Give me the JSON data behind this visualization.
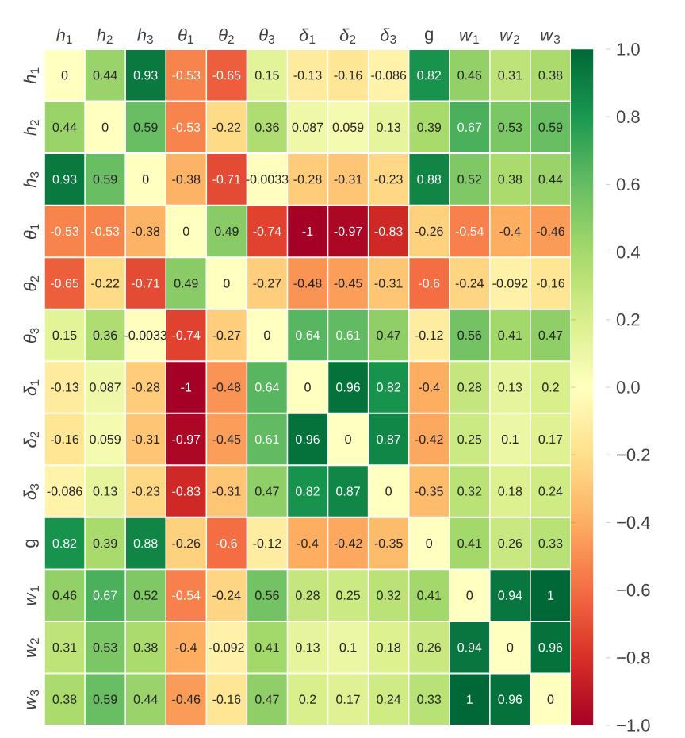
{
  "chart_data": {
    "type": "heatmap",
    "categories": [
      "*h*$_{1}$",
      "*h*$_{2}$",
      "*h*$_{3}$",
      "*θ*$_{1}$",
      "*θ*$_{2}$",
      "*θ*$_{3}$",
      "*δ*$_{1}$",
      "*δ*$_{2}$",
      "*δ*$_{3}$",
      "g",
      "*w*$_{1}$",
      "*w*$_{2}$",
      "*w*$_{3}$"
    ],
    "y_categories": [
      "*h*$_{1}$",
      "*h*$_{2}$",
      "*h*$_{3}$",
      "*θ*$_{1}$",
      "*θ*$_{2}$",
      "*θ*$_{3}$",
      "*δ*$_{1}$",
      "*δ*$_{2}$",
      "*δ*$_{3}$",
      "g",
      "*w*$_{1}$",
      "*w*$_{2}$",
      "*w*$_{3}$"
    ],
    "cells": [
      [
        0,
        0.44,
        0.93,
        -0.53,
        -0.65,
        0.15,
        -0.13,
        -0.16,
        -0.086,
        0.82,
        0.46,
        0.31,
        0.38
      ],
      [
        0.44,
        0,
        0.59,
        -0.53,
        -0.22,
        0.36,
        0.087,
        0.059,
        0.13,
        0.39,
        0.67,
        0.53,
        0.59
      ],
      [
        0.93,
        0.59,
        0,
        -0.38,
        -0.71,
        -0.0033,
        -0.28,
        -0.31,
        -0.23,
        0.88,
        0.52,
        0.38,
        0.44
      ],
      [
        -0.53,
        -0.53,
        -0.38,
        0,
        0.49,
        -0.74,
        -1,
        -0.97,
        -0.83,
        -0.26,
        -0.54,
        -0.4,
        -0.46
      ],
      [
        -0.65,
        -0.22,
        -0.71,
        0.49,
        0,
        -0.27,
        -0.48,
        -0.45,
        -0.31,
        -0.6,
        -0.24,
        -0.092,
        -0.16
      ],
      [
        0.15,
        0.36,
        -0.0033,
        -0.74,
        -0.27,
        0,
        0.64,
        0.61,
        0.47,
        -0.12,
        0.56,
        0.41,
        0.47
      ],
      [
        -0.13,
        0.087,
        -0.28,
        -1,
        -0.48,
        0.64,
        0,
        0.96,
        0.82,
        -0.4,
        0.28,
        0.13,
        0.2
      ],
      [
        -0.16,
        0.059,
        -0.31,
        -0.97,
        -0.45,
        0.61,
        0.96,
        0,
        0.87,
        -0.42,
        0.25,
        0.1,
        0.17
      ],
      [
        -0.086,
        0.13,
        -0.23,
        -0.83,
        -0.31,
        0.47,
        0.82,
        0.87,
        0,
        -0.35,
        0.32,
        0.18,
        0.24
      ],
      [
        0.82,
        0.39,
        0.88,
        -0.26,
        -0.6,
        -0.12,
        -0.4,
        -0.42,
        -0.35,
        0,
        0.41,
        0.26,
        0.33
      ],
      [
        0.46,
        0.67,
        0.52,
        -0.54,
        -0.24,
        0.56,
        0.28,
        0.25,
        0.32,
        0.41,
        0,
        0.94,
        1
      ],
      [
        0.31,
        0.53,
        0.38,
        -0.4,
        -0.092,
        0.41,
        0.13,
        0.1,
        0.18,
        0.26,
        0.94,
        0,
        0.96
      ],
      [
        0.38,
        0.59,
        0.44,
        -0.46,
        -0.16,
        0.47,
        0.2,
        0.17,
        0.24,
        0.33,
        1,
        0.96,
        0
      ]
    ],
    "clim": [
      -1,
      1
    ],
    "cticks": [
      {
        "value": -1,
        "label": "−1.0"
      },
      {
        "value": -0.8,
        "label": "−0.8"
      },
      {
        "value": -0.6,
        "label": "−0.6"
      },
      {
        "value": -0.4,
        "label": "−0.4"
      },
      {
        "value": -0.2,
        "label": "−0.2"
      },
      {
        "value": 0,
        "label": "0.0"
      },
      {
        "value": 0.2,
        "label": "0.2"
      },
      {
        "value": 0.4,
        "label": "0.4"
      },
      {
        "value": 0.6,
        "label": "0.6"
      },
      {
        "value": 0.8,
        "label": "0.8"
      },
      {
        "value": 1,
        "label": "1.0"
      }
    ],
    "data_labels": true
  }
}
